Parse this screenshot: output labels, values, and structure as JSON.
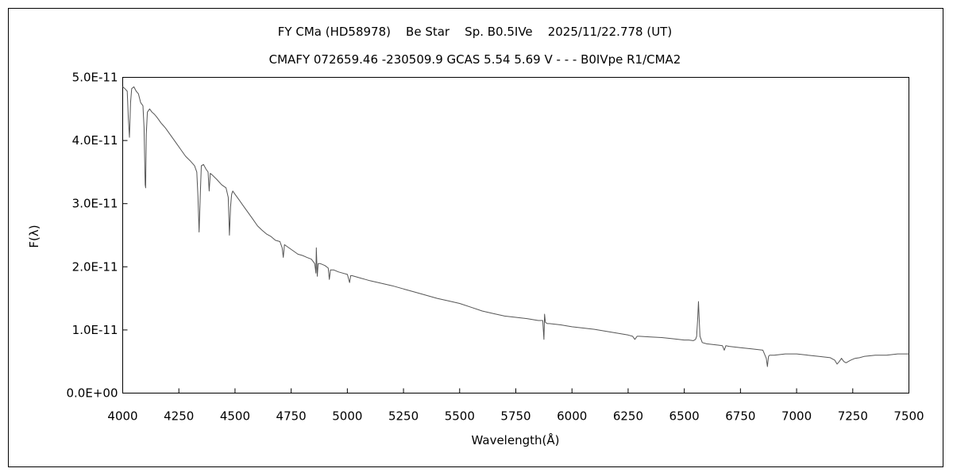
{
  "chart_data": {
    "type": "line",
    "title": "FY CMa (HD58978)    Be Star    Sp. B0.5IVe    2025/11/22.778 (UT)",
    "subtitle": "CMAFY 072659.46 -230509.9 GCAS 5.54 5.69 V - - - B0IVpe R1/CMA2",
    "xlabel": "Wavelength(Å)",
    "ylabel": "F(λ)",
    "xlim": [
      4000,
      7500
    ],
    "ylim": [
      0,
      5e-11
    ],
    "x_ticks": [
      4000,
      4250,
      4500,
      4750,
      5000,
      5250,
      5500,
      5750,
      6000,
      6250,
      6500,
      6750,
      7000,
      7250,
      7500
    ],
    "x_tick_labels": [
      "4000",
      "4250",
      "4500",
      "4750",
      "5000",
      "5250",
      "5500",
      "5750",
      "6000",
      "6250",
      "6500",
      "6750",
      "7000",
      "7250",
      "7500"
    ],
    "y_ticks": [
      0,
      1e-11,
      2e-11,
      3e-11,
      4e-11,
      5e-11
    ],
    "y_tick_labels": [
      "0.0E+00",
      "1.0E-11",
      "2.0E-11",
      "3.0E-11",
      "4.0E-11",
      "5.0E-11"
    ],
    "grid": false,
    "line_color": "#555555",
    "series": [
      {
        "x": [
          4000,
          4010,
          4020,
          4025,
          4030,
          4035,
          4040,
          4050,
          4060,
          4070,
          4080,
          4090,
          4095,
          4100,
          4102,
          4105,
          4110,
          4120,
          4130,
          4140,
          4150,
          4160,
          4170,
          4180,
          4190,
          4200,
          4220,
          4240,
          4260,
          4280,
          4300,
          4320,
          4330,
          4335,
          4340,
          4345,
          4350,
          4360,
          4370,
          4380,
          4385,
          4390,
          4400,
          4420,
          4440,
          4460,
          4470,
          4475,
          4480,
          4485,
          4490,
          4500,
          4520,
          4540,
          4560,
          4580,
          4600,
          4620,
          4640,
          4660,
          4680,
          4700,
          4710,
          4715,
          4720,
          4740,
          4760,
          4780,
          4800,
          4820,
          4840,
          4855,
          4860,
          4862,
          4866,
          4870,
          4880,
          4900,
          4915,
          4920,
          4925,
          4940,
          4960,
          4980,
          5000,
          5010,
          5015,
          5020,
          5040,
          5060,
          5080,
          5100,
          5150,
          5200,
          5250,
          5300,
          5350,
          5400,
          5450,
          5500,
          5550,
          5600,
          5650,
          5700,
          5750,
          5800,
          5850,
          5870,
          5875,
          5878,
          5882,
          5890,
          5900,
          5950,
          6000,
          6050,
          6100,
          6150,
          6200,
          6250,
          6270,
          6280,
          6290,
          6300,
          6350,
          6400,
          6450,
          6500,
          6520,
          6540,
          6550,
          6555,
          6560,
          6563,
          6566,
          6570,
          6580,
          6600,
          6650,
          6670,
          6678,
          6685,
          6700,
          6750,
          6800,
          6850,
          6865,
          6870,
          6875,
          6880,
          6890,
          6900,
          6950,
          7000,
          7050,
          7100,
          7150,
          7170,
          7180,
          7190,
          7200,
          7210,
          7220,
          7240,
          7260,
          7280,
          7300,
          7350,
          7400,
          7450,
          7500
        ],
        "y": [
          4.85e-11,
          4.82e-11,
          4.78e-11,
          4.35e-11,
          4.05e-11,
          4.6e-11,
          4.82e-11,
          4.85e-11,
          4.78e-11,
          4.74e-11,
          4.6e-11,
          4.55e-11,
          4.2e-11,
          3.3e-11,
          3.25e-11,
          4.1e-11,
          4.45e-11,
          4.5e-11,
          4.45e-11,
          4.42e-11,
          4.38e-11,
          4.33e-11,
          4.28e-11,
          4.24e-11,
          4.2e-11,
          4.15e-11,
          4.05e-11,
          3.95e-11,
          3.85e-11,
          3.75e-11,
          3.68e-11,
          3.6e-11,
          3.5e-11,
          3.1e-11,
          2.55e-11,
          3.1e-11,
          3.6e-11,
          3.62e-11,
          3.55e-11,
          3.5e-11,
          3.2e-11,
          3.48e-11,
          3.45e-11,
          3.38e-11,
          3.3e-11,
          3.25e-11,
          3.1e-11,
          2.5e-11,
          2.95e-11,
          3.15e-11,
          3.2e-11,
          3.15e-11,
          3.05e-11,
          2.95e-11,
          2.85e-11,
          2.75e-11,
          2.65e-11,
          2.58e-11,
          2.52e-11,
          2.48e-11,
          2.42e-11,
          2.4e-11,
          2.3e-11,
          2.15e-11,
          2.35e-11,
          2.3e-11,
          2.25e-11,
          2.2e-11,
          2.18e-11,
          2.15e-11,
          2.12e-11,
          2.05e-11,
          1.9e-11,
          2.3e-11,
          1.85e-11,
          2.05e-11,
          2.05e-11,
          2.02e-11,
          1.98e-11,
          1.8e-11,
          1.95e-11,
          1.95e-11,
          1.92e-11,
          1.9e-11,
          1.88e-11,
          1.75e-11,
          1.86e-11,
          1.86e-11,
          1.84e-11,
          1.82e-11,
          1.8e-11,
          1.78e-11,
          1.74e-11,
          1.7e-11,
          1.65e-11,
          1.6e-11,
          1.55e-11,
          1.5e-11,
          1.46e-11,
          1.42e-11,
          1.36e-11,
          1.3e-11,
          1.26e-11,
          1.22e-11,
          1.2e-11,
          1.18e-11,
          1.15e-11,
          1.15e-11,
          8.5e-12,
          1.25e-11,
          1.12e-11,
          1.1e-11,
          1.1e-11,
          1.08e-11,
          1.05e-11,
          1.03e-11,
          1.01e-11,
          9.8e-12,
          9.5e-12,
          9.2e-12,
          9e-12,
          8.5e-12,
          9e-12,
          9e-12,
          8.9e-12,
          8.8e-12,
          8.6e-12,
          8.4e-12,
          8.4e-12,
          8.3e-12,
          8.5e-12,
          9e-12,
          1.2e-11,
          1.45e-11,
          1.2e-11,
          9e-12,
          8e-12,
          7.8e-12,
          7.6e-12,
          7.5e-12,
          6.8e-12,
          7.5e-12,
          7.4e-12,
          7.2e-12,
          7e-12,
          6.8e-12,
          5.5e-12,
          4.2e-12,
          5.8e-12,
          6e-12,
          6e-12,
          6e-12,
          6.2e-12,
          6.2e-12,
          6e-12,
          5.8e-12,
          5.6e-12,
          5.2e-12,
          4.6e-12,
          5e-12,
          5.5e-12,
          5e-12,
          4.8e-12,
          5.2e-12,
          5.5e-12,
          5.6e-12,
          5.8e-12,
          6e-12,
          6e-12,
          6.2e-12,
          6.2e-12
        ]
      }
    ]
  }
}
